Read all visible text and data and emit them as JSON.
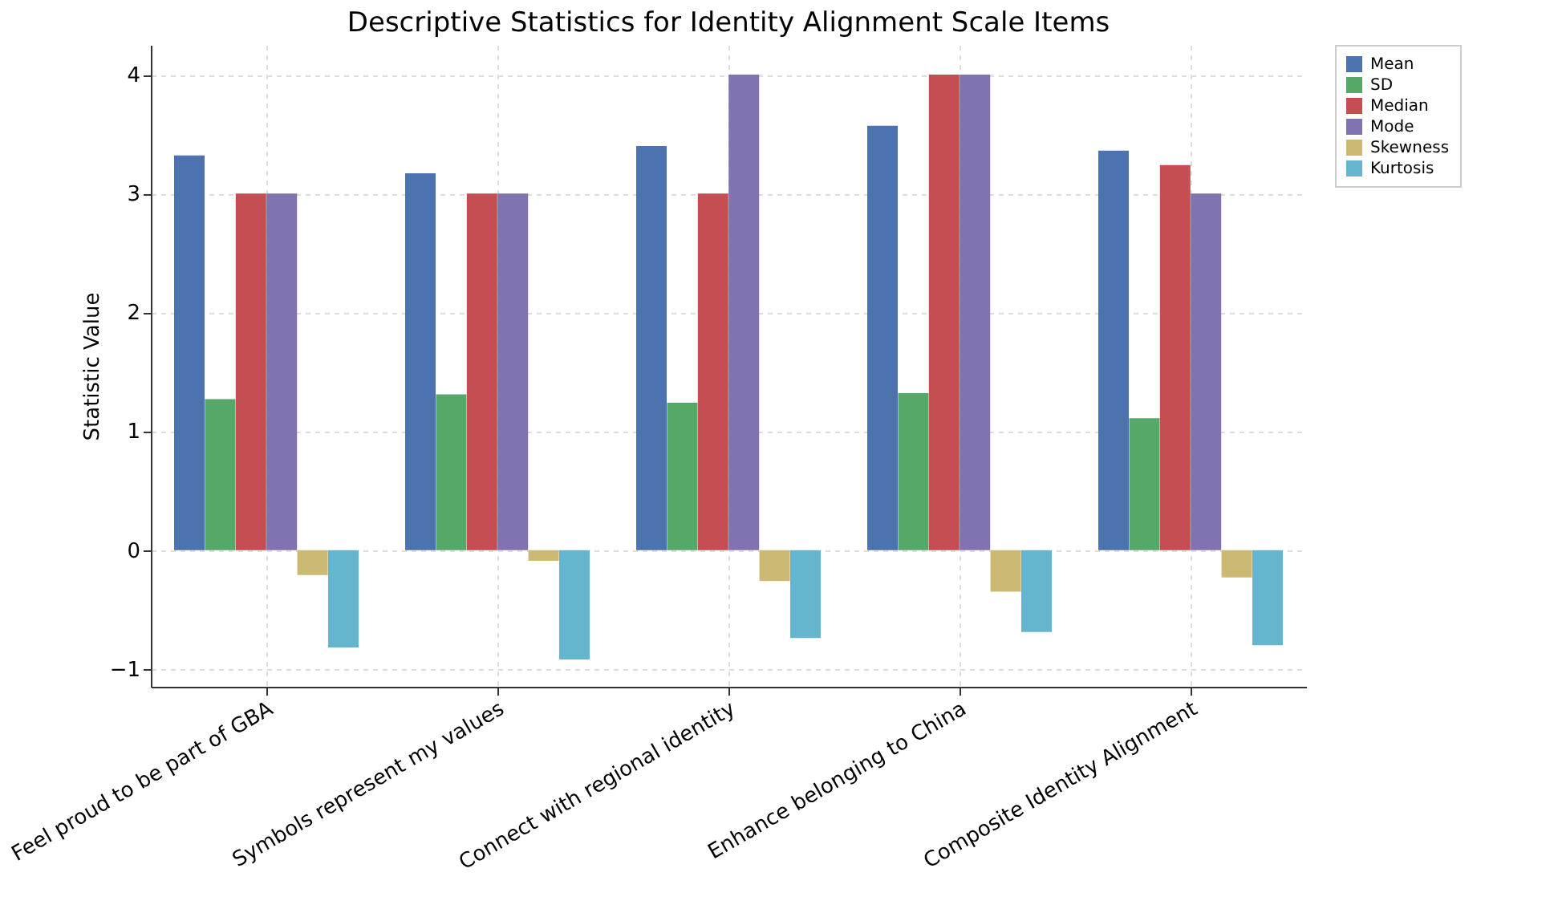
{
  "chart_data": {
    "type": "bar",
    "title": "Descriptive Statistics for Identity Alignment Scale Items",
    "ylabel": "Statistic Value",
    "categories": [
      "Feel proud to be part of GBA",
      "Symbols represent my values",
      "Connect with regional identity",
      "Enhance belonging to China",
      "Composite Identity Alignment"
    ],
    "series": [
      {
        "name": "Mean",
        "color": "#4c72b0",
        "values": [
          3.32,
          3.17,
          3.4,
          3.57,
          3.36
        ]
      },
      {
        "name": "SD",
        "color": "#55a868",
        "values": [
          1.27,
          1.31,
          1.24,
          1.32,
          1.11
        ]
      },
      {
        "name": "Median",
        "color": "#c44e52",
        "values": [
          3,
          3,
          3,
          4,
          3.24
        ]
      },
      {
        "name": "Mode",
        "color": "#8172b2",
        "values": [
          3,
          3,
          4,
          4,
          3
        ]
      },
      {
        "name": "Skewness",
        "color": "#ccb974",
        "values": [
          -0.21,
          -0.09,
          -0.26,
          -0.35,
          -0.23
        ]
      },
      {
        "name": "Kurtosis",
        "color": "#64b5cd",
        "values": [
          -0.82,
          -0.92,
          -0.74,
          -0.69,
          -0.8
        ]
      }
    ],
    "ylim": [
      -1.15,
      4.25
    ],
    "yticks": [
      {
        "value": -1,
        "label": "−1"
      },
      0,
      1,
      2,
      3,
      4
    ],
    "grid": true,
    "legend": "top right"
  }
}
